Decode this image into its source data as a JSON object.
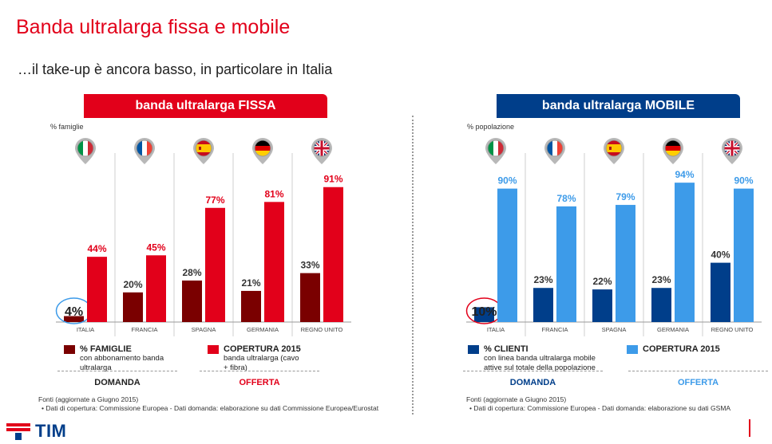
{
  "title": "Banda ultralarga fissa e mobile",
  "subtitle": "…il take-up è ancora basso, in particolare in Italia",
  "colors": {
    "red": "#e2001a",
    "dark_red": "#7a0000",
    "navy": "#003e8a",
    "light_blue": "#3d9be9"
  },
  "fissa": {
    "header": "banda ultralarga FISSA",
    "unit": "% famiglie",
    "legend_a_label": "% FAMIGLIE",
    "legend_a_sub": "con abbonamento banda ultralarga",
    "legend_b_label": "COPERTURA 2015",
    "legend_b_sub": "banda ultralarga (cavo + fibra)",
    "group_a": "DOMANDA",
    "group_b": "OFFERTA",
    "sources_title": "Fonti (aggiornate a Giugno 2015)",
    "sources_line": "Dati di copertura: Commissione Europea - Dati domanda: elaborazione su dati Commissione Europea/Eurostat"
  },
  "mobile": {
    "header": "banda ultralarga MOBILE",
    "unit": "% popolazione",
    "legend_a_label": "% CLIENTI",
    "legend_a_sub": "con linea banda ultralarga mobile attive sul totale della popolazione",
    "legend_b_label": "COPERTURA 2015",
    "group_a": "DOMANDA",
    "group_b": "OFFERTA",
    "sources_title": "Fonti (aggiornate a Giugno 2015)",
    "sources_line": "Dati di copertura: Commissione Europea - Dati domanda: elaborazione su dati GSMA"
  },
  "logo_text": "TIM",
  "chart_data": [
    {
      "type": "bar",
      "title": "banda ultralarga FISSA",
      "ylabel": "% famiglie",
      "categories": [
        "ITALIA",
        "FRANCIA",
        "SPAGNA",
        "GERMANIA",
        "REGNO UNITO"
      ],
      "flags": [
        "it",
        "fr",
        "es",
        "de",
        "gb"
      ],
      "series": [
        {
          "name": "% FAMIGLIE",
          "values": [
            4,
            20,
            28,
            21,
            33
          ],
          "labels": [
            "4%",
            "20%",
            "28%",
            "21%",
            "33%"
          ],
          "color": "#7a0000"
        },
        {
          "name": "COPERTURA 2015",
          "values": [
            44,
            45,
            77,
            81,
            91
          ],
          "labels": [
            "44%",
            "45%",
            "77%",
            "81%",
            "91%"
          ],
          "color": "#e2001a"
        }
      ],
      "ylim": [
        0,
        100
      ],
      "highlight_index": 0
    },
    {
      "type": "bar",
      "title": "banda ultralarga MOBILE",
      "ylabel": "% popolazione",
      "categories": [
        "ITALIA",
        "FRANCIA",
        "SPAGNA",
        "GERMANIA",
        "REGNO UNITO"
      ],
      "flags": [
        "it",
        "fr",
        "es",
        "de",
        "gb"
      ],
      "series": [
        {
          "name": "% CLIENTI",
          "values": [
            10,
            23,
            22,
            23,
            40
          ],
          "labels": [
            "10%",
            "23%",
            "22%",
            "23%",
            "40%"
          ],
          "color": "#003e8a"
        },
        {
          "name": "COPERTURA 2015",
          "values": [
            90,
            78,
            79,
            94,
            90
          ],
          "labels": [
            "90%",
            "78%",
            "79%",
            "94%",
            "90%"
          ],
          "color": "#3d9be9"
        }
      ],
      "ylim": [
        0,
        100
      ],
      "highlight_index": 0
    }
  ]
}
